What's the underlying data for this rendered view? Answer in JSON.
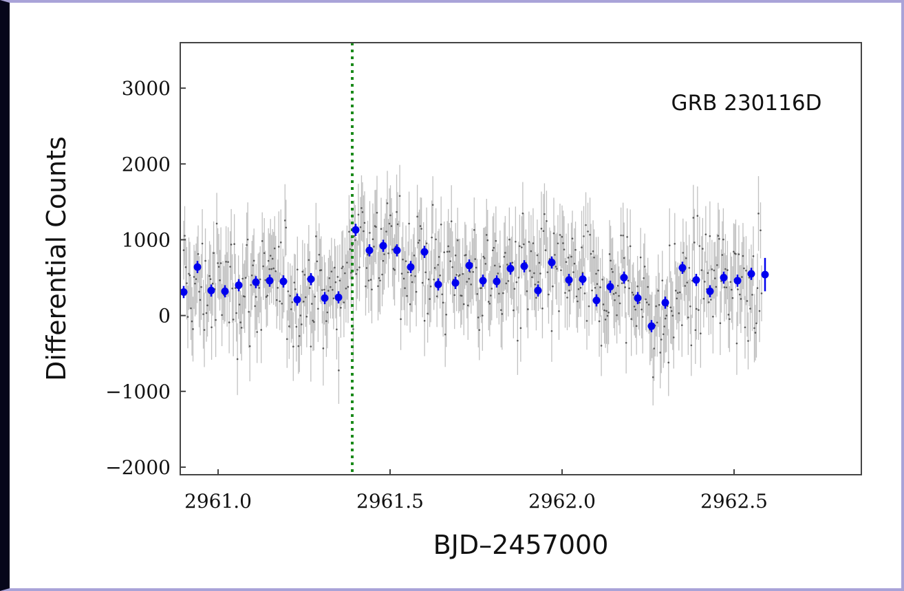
{
  "chart_data": {
    "type": "scatter",
    "title": "",
    "xlabel": "BJD–2457000",
    "ylabel": "Differential Counts",
    "xlim": [
      2960.89,
      2962.87
    ],
    "ylim": [
      -2100,
      3600
    ],
    "x_ticks": [
      2961.0,
      2961.5,
      2962.0,
      2962.5
    ],
    "x_tick_labels": [
      "2961.0",
      "2961.5",
      "2962.0",
      "2962.5"
    ],
    "y_ticks": [
      -2000,
      -1000,
      0,
      1000,
      2000,
      3000
    ],
    "y_tick_labels": [
      "−2000",
      "−1000",
      "0",
      "1000",
      "2000",
      "3000"
    ],
    "grid": false,
    "annotation": "GRB 230116D",
    "event_line": {
      "x": 2961.39,
      "color": "#1a8a1a",
      "style": "dotted"
    },
    "colors": {
      "raw": "#8c8c8c",
      "binned": "#0000ee",
      "axes": "#444444"
    },
    "series": [
      {
        "role": "raw",
        "x_start": 2960.9,
        "x_end": 2962.58,
        "n_points": 560,
        "typical_error": 430,
        "baseline_x": [
          2960.9,
          2961.1,
          2961.35,
          2961.4,
          2961.6,
          2961.8,
          2962.0,
          2962.1,
          2962.2,
          2962.28,
          2962.35,
          2962.58
        ],
        "baseline_y": [
          350,
          420,
          250,
          1050,
          650,
          500,
          500,
          300,
          400,
          -100,
          350,
          520
        ],
        "scatter_sd": 550
      },
      {
        "role": "binned",
        "x": [
          2960.9,
          2960.94,
          2960.98,
          2961.02,
          2961.06,
          2961.11,
          2961.15,
          2961.19,
          2961.23,
          2961.27,
          2961.31,
          2961.35,
          2961.4,
          2961.44,
          2961.48,
          2961.52,
          2961.56,
          2961.6,
          2961.64,
          2961.69,
          2961.73,
          2961.77,
          2961.81,
          2961.85,
          2961.89,
          2961.93,
          2961.97,
          2962.02,
          2962.06,
          2962.1,
          2962.14,
          2962.18,
          2962.22,
          2962.26,
          2962.3,
          2962.35,
          2962.39,
          2962.43,
          2962.47,
          2962.51,
          2962.55,
          2962.59
        ],
        "y": [
          310,
          640,
          330,
          320,
          400,
          440,
          460,
          450,
          210,
          480,
          230,
          240,
          1130,
          860,
          920,
          860,
          640,
          840,
          410,
          430,
          660,
          460,
          450,
          620,
          650,
          330,
          700,
          470,
          480,
          200,
          380,
          500,
          230,
          -140,
          170,
          630,
          470,
          320,
          500,
          460,
          550,
          540
        ],
        "yerr": [
          80,
          80,
          80,
          80,
          80,
          80,
          80,
          80,
          80,
          80,
          80,
          80,
          80,
          80,
          80,
          80,
          80,
          80,
          80,
          80,
          80,
          80,
          80,
          80,
          80,
          80,
          80,
          80,
          80,
          80,
          80,
          80,
          80,
          80,
          80,
          80,
          80,
          80,
          80,
          80,
          80,
          220
        ]
      }
    ]
  }
}
